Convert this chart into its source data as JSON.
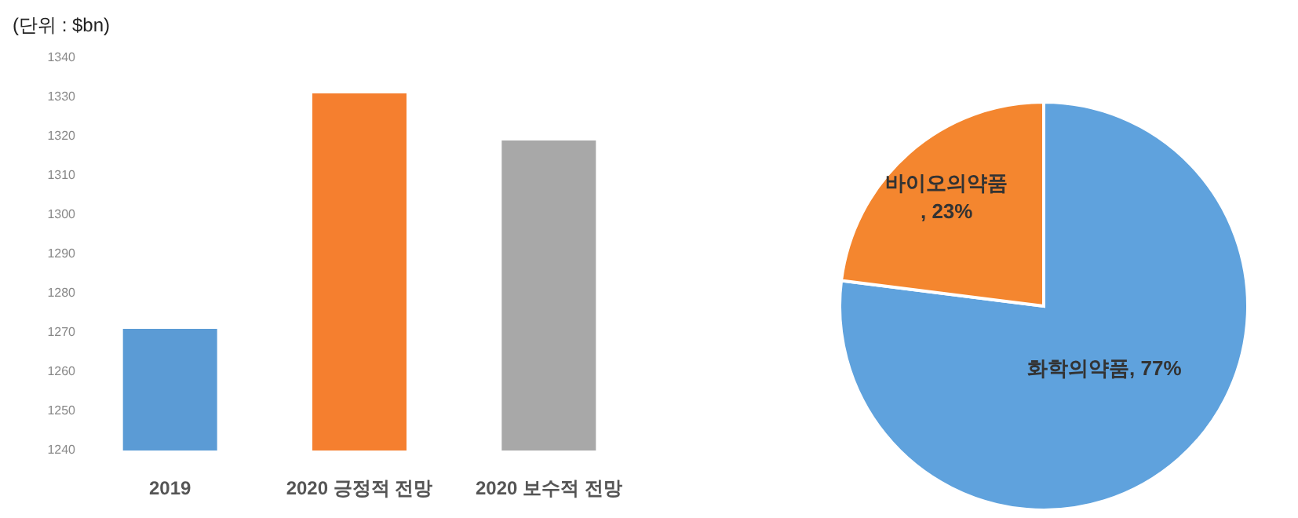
{
  "chart_data": [
    {
      "type": "bar",
      "ylabel": "(단위 : $bn)",
      "categories": [
        "2019",
        "2020 긍정적 전망",
        "2020 보수적 전망"
      ],
      "values": [
        1271,
        1331,
        1319
      ],
      "colors": [
        "#5b9bd5",
        "#f57f2f",
        "#a8a8a8"
      ],
      "ylim": [
        1240,
        1340
      ],
      "yticks": [
        1240,
        1250,
        1260,
        1270,
        1280,
        1290,
        1300,
        1310,
        1320,
        1330,
        1340
      ],
      "grid": false
    },
    {
      "type": "pie",
      "categories": [
        "화학의약품",
        "바이오의약품"
      ],
      "values": [
        77,
        23
      ],
      "colors": [
        "#5fa2dd",
        "#f4862f"
      ],
      "value_labels": [
        ", 77%",
        ", 23%"
      ]
    }
  ]
}
